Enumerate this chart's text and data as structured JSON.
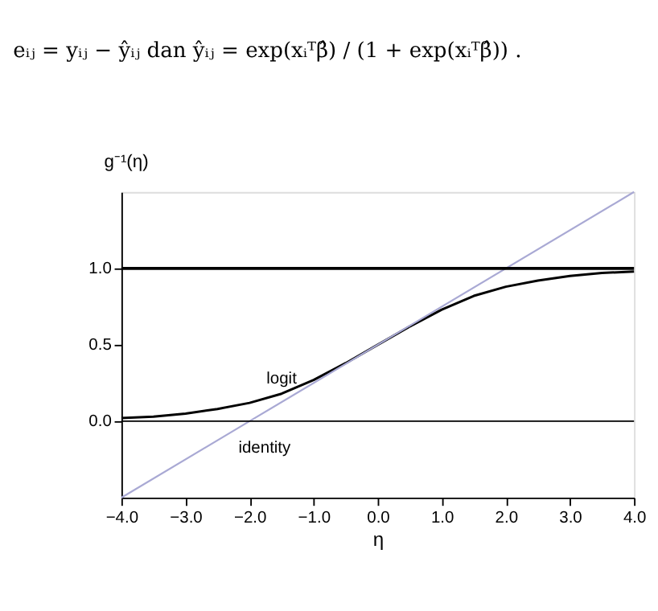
{
  "chart_data": {
    "type": "line",
    "annotations": [
      "eᵢⱼ = yᵢⱼ − ŷᵢⱼ  dan  ŷᵢⱼ = exp(xᵢᵀβ̂) / (1 + exp(xᵢᵀβ̂)) ."
    ],
    "xlabel": "η",
    "ylabel": "g⁻¹(η)",
    "series": [
      {
        "name": "logit",
        "color": "#000000",
        "x": [
          -4,
          -3.5,
          -3,
          -2.5,
          -2,
          -1.5,
          -1,
          -0.5,
          0,
          0.5,
          1,
          1.5,
          2,
          2.5,
          3,
          3.5,
          4
        ],
        "values": [
          0.02,
          0.03,
          0.05,
          0.08,
          0.12,
          0.18,
          0.27,
          0.38,
          0.5,
          0.62,
          0.73,
          0.82,
          0.88,
          0.92,
          0.95,
          0.97,
          0.98
        ]
      },
      {
        "name": "identity",
        "color": "#a9a9d4",
        "x": [
          -4,
          -2,
          4
        ],
        "values": [
          -0.5,
          0.0,
          1.5
        ]
      }
    ],
    "xlim": [
      -4,
      4
    ],
    "ylim": [
      -0.5,
      1.5
    ],
    "xticks": [
      {
        "value": -4,
        "label": "−4.0"
      },
      {
        "value": -3,
        "label": "−3.0"
      },
      {
        "value": -2,
        "label": "−2.0"
      },
      {
        "value": -1,
        "label": "−1.0"
      },
      {
        "value": 0,
        "label": "0.0"
      },
      {
        "value": 1,
        "label": "1.0"
      },
      {
        "value": 2,
        "label": "2.0"
      },
      {
        "value": 3,
        "label": "3.0"
      },
      {
        "value": 4,
        "label": "4.0"
      }
    ],
    "yticks": [
      {
        "value": 0,
        "label": "0.0"
      },
      {
        "value": 0.5,
        "label": "0.5"
      },
      {
        "value": 1,
        "label": "1.0"
      }
    ],
    "ref_lines": [
      {
        "axis": "y",
        "value": 0,
        "color": "#000000"
      },
      {
        "axis": "y",
        "value": 1,
        "color": "#000000"
      }
    ],
    "grid": false,
    "line_style": "solid",
    "marker": "none"
  }
}
